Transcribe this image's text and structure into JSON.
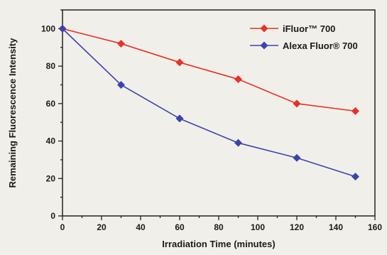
{
  "chart_data": {
    "type": "line",
    "xlabel": "Irradiation Time (minutes)",
    "ylabel": "Remaining Fluorescence Intensity",
    "xlim": [
      0,
      160
    ],
    "ylim": [
      0,
      110
    ],
    "xticks": [
      0,
      20,
      40,
      60,
      80,
      100,
      120,
      140,
      160
    ],
    "yticks": [
      0,
      20,
      40,
      60,
      80,
      100
    ],
    "grid": false,
    "legend_position": "top-right",
    "marker": "diamond",
    "series": [
      {
        "name": "iFluor™ 700",
        "color": "#e8312a",
        "x": [
          0,
          30,
          60,
          90,
          120,
          150
        ],
        "y": [
          100,
          92,
          82,
          73,
          60,
          56
        ]
      },
      {
        "name": "Alexa Fluor® 700",
        "color": "#3a44b0",
        "x": [
          0,
          30,
          60,
          90,
          120,
          150
        ],
        "y": [
          100,
          70,
          52,
          39,
          31,
          21
        ]
      }
    ]
  }
}
